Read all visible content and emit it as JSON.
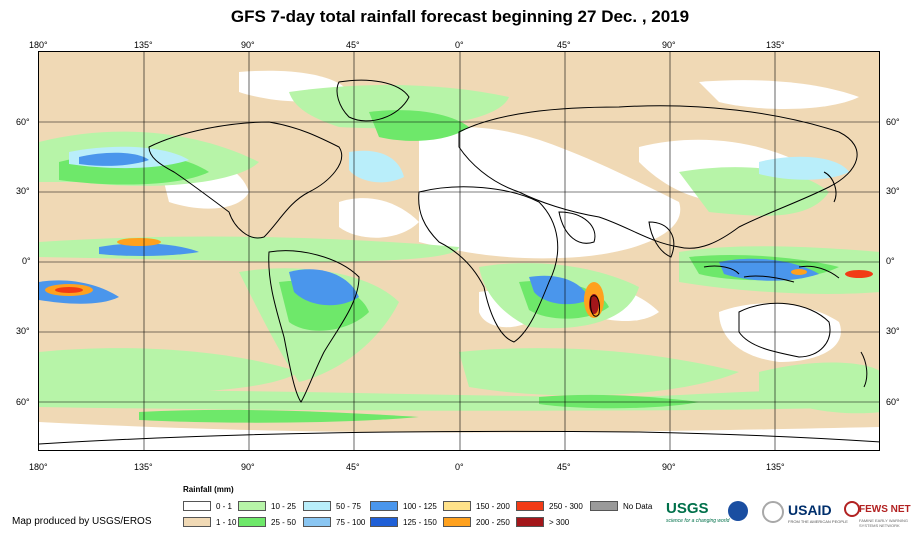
{
  "title": "GFS 7-day total rainfall forecast beginning 27 Dec. , 2019",
  "top_longitudes": [
    "180°",
    "135°",
    "90°",
    "45°",
    "0°",
    "45°",
    "90°",
    "135°"
  ],
  "bottom_longitudes": [
    "180°",
    "135°",
    "90°",
    "45°",
    "0°",
    "45°",
    "90°",
    "135°"
  ],
  "left_latitudes": [
    "60°",
    "30°",
    "0°",
    "30°",
    "60°"
  ],
  "right_latitudes": [
    "60°",
    "30°",
    "0°",
    "30°",
    "60°"
  ],
  "legend": {
    "title": "Rainfall (mm)",
    "items": [
      {
        "label": "0 - 1",
        "color": "#ffffff"
      },
      {
        "label": "1 - 10",
        "color": "#f0d9b5"
      },
      {
        "label": "10 - 25",
        "color": "#b7f4a8"
      },
      {
        "label": "25 - 50",
        "color": "#6ee86a"
      },
      {
        "label": "50 - 75",
        "color": "#b9eefa"
      },
      {
        "label": "75 - 100",
        "color": "#8ac6f2"
      },
      {
        "label": "100 - 125",
        "color": "#4a96ec"
      },
      {
        "label": "125 - 150",
        "color": "#1f5fd6"
      },
      {
        "label": "150 - 200",
        "color": "#ffe28a"
      },
      {
        "label": "200 - 250",
        "color": "#ffa11e"
      },
      {
        "label": "250 - 300",
        "color": "#f23b16"
      },
      {
        "label": "> 300",
        "color": "#a3161a"
      },
      {
        "label": "No Data",
        "color": "#9a9a9a"
      }
    ]
  },
  "credit": "Map produced by USGS/EROS",
  "logos": {
    "usgs": "USGS",
    "usgs_tagline": "science for a changing world",
    "usaid": "USAID",
    "usaid_tagline": "FROM THE AMERICAN PEOPLE",
    "fews": "FEWS NET",
    "fews_tagline": "FAMINE EARLY WARNING SYSTEMS NETWORK"
  }
}
